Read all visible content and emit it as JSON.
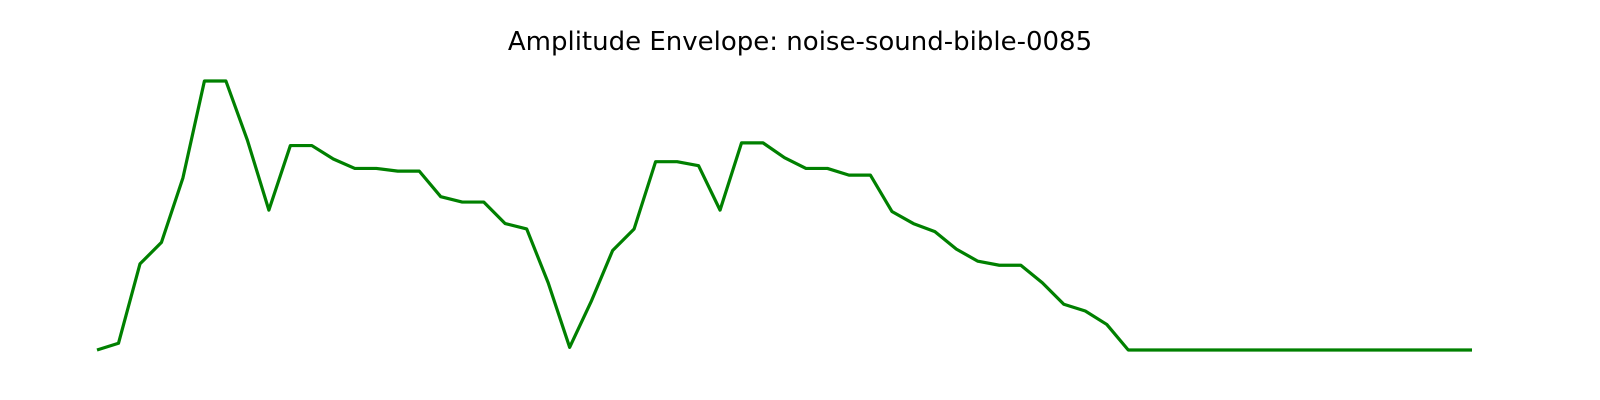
{
  "chart_data": {
    "type": "line",
    "title": "Amplitude Envelope: noise-sound-bible-0085",
    "xlabel": "",
    "ylabel": "",
    "grid": false,
    "axes_visible": false,
    "line_color": "#008000",
    "ylim": [
      0,
      1
    ],
    "x": [
      0,
      1,
      2,
      3,
      4,
      5,
      6,
      7,
      8,
      9,
      10,
      11,
      12,
      13,
      14,
      15,
      16,
      17,
      18,
      19,
      20,
      21,
      22,
      23,
      24,
      25,
      26,
      27,
      28,
      29,
      30,
      31,
      32,
      33,
      34,
      35,
      36,
      37,
      38,
      39,
      40,
      41,
      42,
      43,
      44,
      45,
      46,
      47,
      48,
      49,
      50,
      51,
      52,
      53,
      54,
      55,
      56,
      57,
      58,
      59,
      60,
      61,
      62,
      63,
      64
    ],
    "series": [
      {
        "values": [
          0.0,
          0.025,
          0.32,
          0.4,
          0.64,
          1.0,
          1.0,
          0.78,
          0.52,
          0.76,
          0.76,
          0.71,
          0.675,
          0.675,
          0.665,
          0.665,
          0.57,
          0.55,
          0.55,
          0.47,
          0.45,
          0.25,
          0.01,
          0.18,
          0.37,
          0.45,
          0.7,
          0.7,
          0.685,
          0.52,
          0.77,
          0.77,
          0.715,
          0.675,
          0.675,
          0.65,
          0.65,
          0.515,
          0.47,
          0.44,
          0.375,
          0.33,
          0.315,
          0.315,
          0.25,
          0.17,
          0.145,
          0.095,
          0.0,
          0.0,
          0.0,
          0.0,
          0.0,
          0.0,
          0.0,
          0.0,
          0.0,
          0.0,
          0.0,
          0.0,
          0.0,
          0.0,
          0.0,
          0.0,
          0.0
        ]
      }
    ]
  }
}
